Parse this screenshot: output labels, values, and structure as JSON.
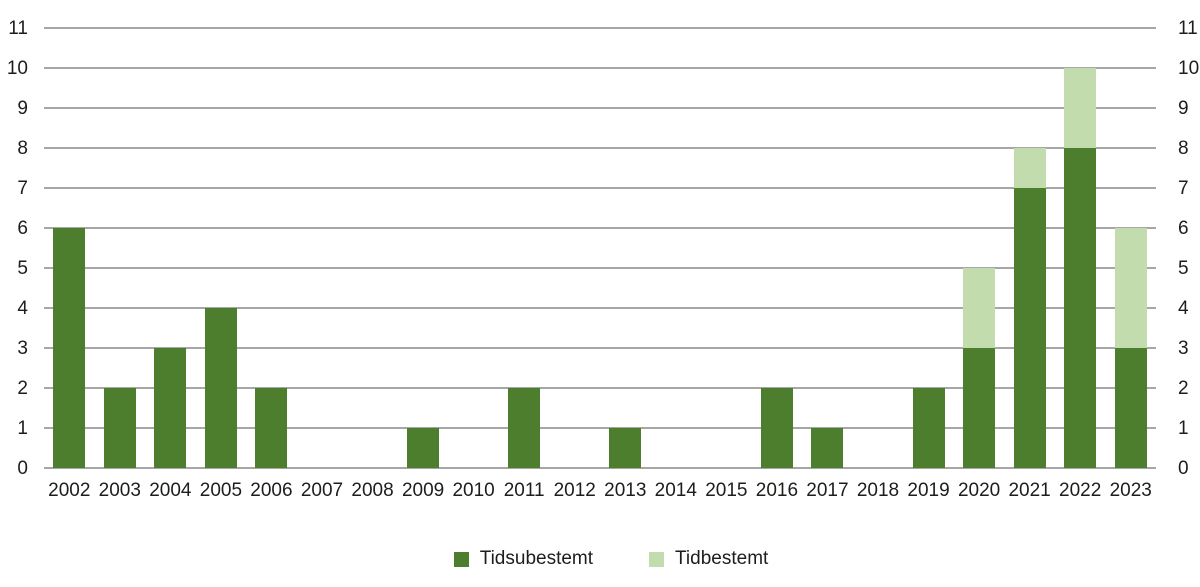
{
  "chart_data": {
    "type": "bar",
    "stacked": true,
    "title": "",
    "categories": [
      "2002",
      "2003",
      "2004",
      "2005",
      "2006",
      "2007",
      "2008",
      "2009",
      "2010",
      "2011",
      "2012",
      "2013",
      "2014",
      "2015",
      "2016",
      "2017",
      "2018",
      "2019",
      "2020",
      "2021",
      "2022",
      "2023"
    ],
    "series": [
      {
        "name": "Tidsubestemt",
        "color": "#4c7e2d",
        "values": [
          6,
          2,
          3,
          4,
          2,
          0,
          0,
          1,
          0,
          2,
          0,
          1,
          0,
          0,
          2,
          1,
          0,
          2,
          3,
          7,
          8,
          3
        ]
      },
      {
        "name": "Tidbestemt",
        "color": "#c2dcae",
        "values": [
          0,
          0,
          0,
          0,
          0,
          0,
          0,
          0,
          0,
          0,
          0,
          0,
          0,
          0,
          0,
          0,
          0,
          0,
          2,
          1,
          2,
          3
        ]
      }
    ],
    "y_ticks": [
      0,
      1,
      2,
      3,
      4,
      5,
      6,
      7,
      8,
      9,
      10,
      11
    ],
    "ylim": [
      0,
      11
    ],
    "grid": true,
    "gridline_color": "#a6a6a6",
    "text_color": "#1d1d1b",
    "axes": {
      "left_labels": true,
      "right_labels": true
    },
    "legend_position": "bottom-center"
  }
}
